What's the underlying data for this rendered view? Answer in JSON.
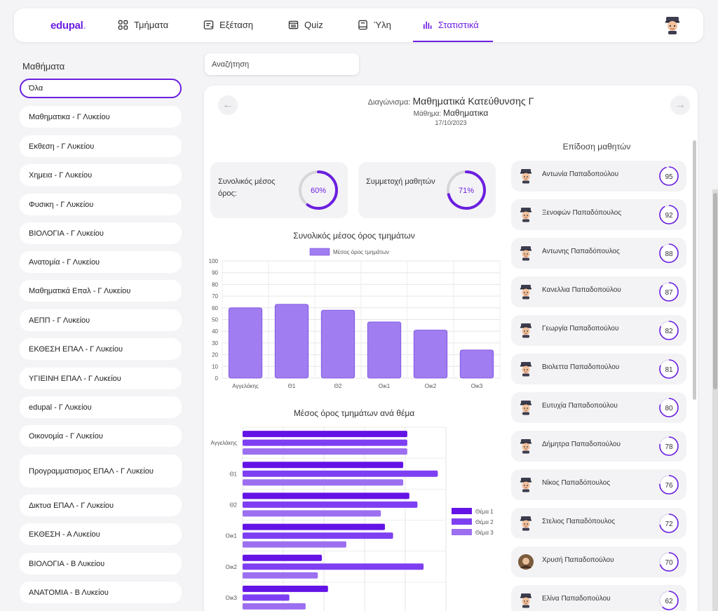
{
  "app": {
    "brand": "edupal",
    "brand_dot": "."
  },
  "nav": {
    "items": [
      {
        "label": "Τμήματα",
        "icon": "grid-icon"
      },
      {
        "label": "Εξέταση",
        "icon": "exam-icon"
      },
      {
        "label": "Quiz",
        "icon": "quiz-icon"
      },
      {
        "label": "Ύλη",
        "icon": "book-icon"
      },
      {
        "label": "Στατιστικά",
        "icon": "stats-icon",
        "active": true
      }
    ],
    "accent": "#6b1fe0"
  },
  "sidebar": {
    "title": "Μαθήματα",
    "courses": [
      "Όλα",
      "Μαθηματικα - Γ Λυκείου",
      "Εκθεση - Γ Λυκείου",
      "Χημεια - Γ Λυκείου",
      "Φυσικη - Γ Λυκείου",
      "ΒΙΟΛΟΓΙΑ - Γ Λυκείου",
      "Ανατομία  - Γ Λυκείου",
      "Μαθηματικά Επαλ  - Γ Λυκείου",
      "ΑΕΠΠ - Γ Λυκείου",
      "ΕΚΘΕΣΗ ΕΠΑΛ - Γ Λυκείου",
      "ΥΓΙΕΙΝΗ ΕΠΑΛ - Γ Λυκείου",
      "edupal - Γ Λυκείου",
      "Οικονομία - Γ Λυκείου",
      "Προγραμματισμος ΕΠΑΛ - Γ Λυκείου",
      "Δικτυα ΕΠΑΛ - Γ Λυκείου",
      "ΕΚΘΕΣΗ - Α Λυκείου",
      "ΒΙΟΛΟΓΙΑ  - Β Λυκείου",
      "ΑΝΑΤΟΜΙΑ - Β Λυκείου"
    ],
    "selected": "Όλα"
  },
  "search": {
    "placeholder": "Αναζήτηση"
  },
  "exam": {
    "label": "Διαγώνισμα:",
    "title": "Μαθηματικά Κατεύθυνσης Γ",
    "subject_label": "Μάθημα:",
    "subject": "Μαθηματικα",
    "date": "17/10/2023",
    "prev_icon": "arrow-left-icon",
    "next_icon": "arrow-right-icon"
  },
  "stats": {
    "overall_label": "Συνολικός μέσος όρος:",
    "overall_value": "60%",
    "overall_fraction": 0.6,
    "participation_label": "Συμμετοχή μαθητών",
    "participation_value": "71%",
    "participation_fraction": 0.71
  },
  "performance": {
    "title": "Επίδοση μαθητών",
    "students": [
      {
        "name": "Αντωνία Παπαδοπούλου",
        "score": 95
      },
      {
        "name": "Ξενοφών Παπαδόπουλος",
        "score": 92
      },
      {
        "name": "Αντωνης Παπαδόπουλος",
        "score": 88
      },
      {
        "name": "Κανελλια Παπαδοπούλου",
        "score": 87
      },
      {
        "name": "Γεωργία Παπαδοπούλου",
        "score": 82
      },
      {
        "name": "Βιολεττα Παπαδοπούλου",
        "score": 81
      },
      {
        "name": "Ευτυχία Παπαδοπούλου",
        "score": 80
      },
      {
        "name": "Δήμητρα Παπαδοπούλου",
        "score": 78
      },
      {
        "name": "Νίκος Παπαδόπουλος",
        "score": 76
      },
      {
        "name": "Στελιος Παπαδόπουλος",
        "score": 72
      },
      {
        "name": "Χρυσή Παπαδοπούλου",
        "score": 70,
        "photo": true
      },
      {
        "name": "Ελίνα Παπαδοπούλου",
        "score": 62
      }
    ]
  },
  "chart_data": [
    {
      "type": "bar",
      "title": "Συνολικός μέσος όρος τμημάτων",
      "categories": [
        "Αγγελάκης",
        "Θ1",
        "Θ2",
        "Οικ1",
        "Οικ2",
        "Οικ3"
      ],
      "series": [
        {
          "name": "Μέσος όρος τμημάτων",
          "values": [
            60,
            63,
            58,
            48,
            41,
            24
          ],
          "color": "#a07df0"
        }
      ],
      "ylim": [
        0,
        100
      ],
      "yticks": [
        0,
        10,
        20,
        30,
        40,
        50,
        60,
        70,
        80,
        90,
        100
      ],
      "grid": true,
      "legend": "top"
    },
    {
      "type": "bar",
      "orientation": "horizontal",
      "title": "Μέσος όρος τμημάτων ανά θέμα",
      "categories": [
        "Αγγελάκης",
        "Θ1",
        "Θ2",
        "Οικ1",
        "Οικ2",
        "Οικ3"
      ],
      "series": [
        {
          "name": "Θέμα 1",
          "values": [
            81,
            79,
            82,
            70,
            39,
            42
          ],
          "color": "#6413e6"
        },
        {
          "name": "Θέμα 2",
          "values": [
            81,
            96,
            86,
            74,
            89,
            23
          ],
          "color": "#7e3ff2"
        },
        {
          "name": "Θέμα 3",
          "values": [
            81,
            79,
            68,
            51,
            37,
            31
          ],
          "color": "#9c6ff0"
        }
      ],
      "xlim": [
        0,
        100
      ],
      "grid": true,
      "legend": "right"
    }
  ]
}
